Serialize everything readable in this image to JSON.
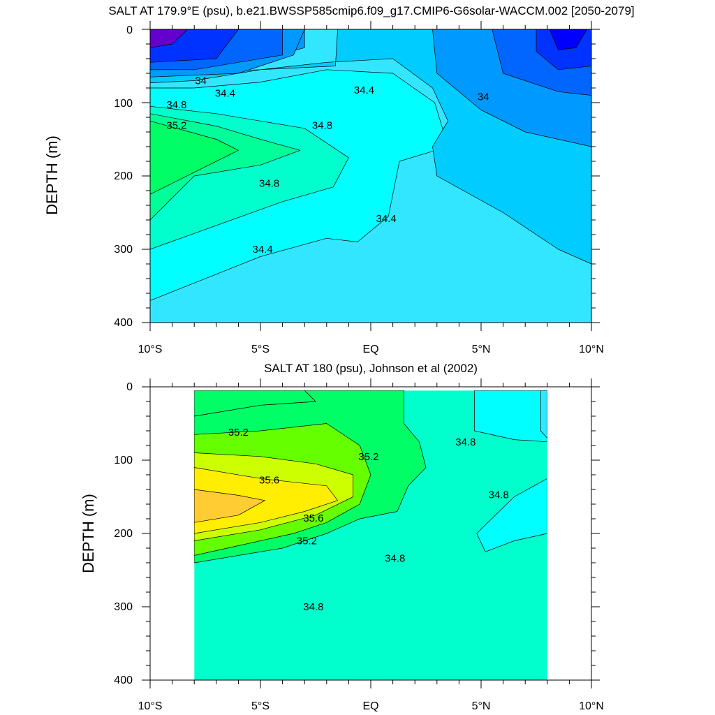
{
  "chart_data": [
    {
      "type": "contour",
      "title": "SALT AT 179.9°E (psu), b.e21.BWSSP585cmip6.f09_g17.CMIP6-G6solar-WACCM.002 [2050-2079]",
      "xlabel": "",
      "ylabel": "DEPTH (m)",
      "x_ticks": [
        "10°S",
        "5°S",
        "EQ",
        "5°N",
        "10°N"
      ],
      "x_tick_values": [
        -10,
        -5,
        0,
        5,
        10
      ],
      "y_ticks": [
        "0",
        "100",
        "200",
        "300",
        "400"
      ],
      "y_tick_values": [
        0,
        100,
        200,
        300,
        400
      ],
      "xlim": [
        -10,
        10
      ],
      "ylim": [
        400,
        0
      ],
      "data_xlim": [
        -10,
        10
      ],
      "background_color": "#33e6ff",
      "regions": [
        {
          "level": 34.4,
          "color": "#00ffff",
          "points": [
            [
              -10,
              80
            ],
            [
              -8,
              80
            ],
            [
              -5,
              72
            ],
            [
              -2,
              55
            ],
            [
              1,
              60
            ],
            [
              2.9,
              100
            ],
            [
              3.5,
              160
            ],
            [
              1.3,
              180
            ],
            [
              0.8,
              255
            ],
            [
              -0.6,
              290
            ],
            [
              -2,
              285
            ],
            [
              -5,
              310
            ],
            [
              -10,
              370
            ]
          ]
        },
        {
          "level": 34.8,
          "color": "#00ffcc",
          "points": [
            [
              -10,
              105
            ],
            [
              -7,
              115
            ],
            [
              -3,
              135
            ],
            [
              -1,
              175
            ],
            [
              -1.7,
              215
            ],
            [
              -4,
              235
            ],
            [
              -10,
              300
            ]
          ]
        },
        {
          "level": 35.2,
          "color": "#00ff99",
          "points": [
            [
              -10,
              115
            ],
            [
              -7,
              132
            ],
            [
              -5,
              150
            ],
            [
              -3.2,
              165
            ],
            [
              -5,
              185
            ],
            [
              -8,
              200
            ],
            [
              -10,
              260
            ]
          ]
        },
        {
          "level": 35.6,
          "color": "#00ff66",
          "points": [
            [
              -10,
              125
            ],
            [
              -7,
              150
            ],
            [
              -6,
              165
            ],
            [
              -7,
              180
            ],
            [
              -10,
              225
            ]
          ]
        },
        {
          "level": 34.0,
          "color": "#00ccff",
          "points": [
            [
              -10,
              60
            ],
            [
              -5,
              55
            ],
            [
              -1.6,
              50
            ],
            [
              -1.5,
              0
            ],
            [
              10,
              0
            ],
            [
              10,
              320
            ],
            [
              8.5,
              300
            ],
            [
              6,
              250
            ],
            [
              3,
              200
            ],
            [
              2.8,
              160
            ],
            [
              3.5,
              125
            ],
            [
              2.8,
              80
            ],
            [
              1,
              40
            ],
            [
              -2,
              45
            ],
            [
              -5,
              55
            ],
            [
              -8,
              70
            ],
            [
              -10,
              73
            ]
          ]
        },
        {
          "level": 33.6,
          "color": "#0099ff",
          "points": [
            [
              -10,
              45
            ],
            [
              -5,
              42
            ],
            [
              -3,
              25
            ],
            [
              -3,
              0
            ],
            [
              10,
              0
            ],
            [
              10,
              160
            ],
            [
              7,
              140
            ],
            [
              5,
              110
            ],
            [
              3,
              60
            ],
            [
              2.8,
              0
            ],
            [
              2.6,
              0
            ],
            [
              -3,
              0
            ]
          ]
        },
        {
          "level": 33.6,
          "color": "#0099ff",
          "points": [
            [
              -10,
              0
            ],
            [
              -3,
              0
            ],
            [
              -3.5,
              35
            ],
            [
              -6,
              60
            ],
            [
              -10,
              65
            ]
          ]
        },
        {
          "level": 33.2,
          "color": "#0066ff",
          "points": [
            [
              -10,
              0
            ],
            [
              -4,
              0
            ],
            [
              -4,
              35
            ],
            [
              -8,
              55
            ],
            [
              -10,
              55
            ]
          ]
        },
        {
          "level": 33.2,
          "color": "#0066ff",
          "points": [
            [
              5.5,
              0
            ],
            [
              10,
              0
            ],
            [
              10,
              90
            ],
            [
              8.5,
              85
            ],
            [
              6,
              60
            ]
          ]
        },
        {
          "level": 32.8,
          "color": "#0033ff",
          "points": [
            [
              -10,
              0
            ],
            [
              -6,
              0
            ],
            [
              -7,
              40
            ],
            [
              -10,
              45
            ]
          ]
        },
        {
          "level": 32.8,
          "color": "#0033ff",
          "points": [
            [
              7.5,
              0
            ],
            [
              10,
              0
            ],
            [
              10,
              50
            ],
            [
              8.5,
              55
            ],
            [
              7.5,
              30
            ]
          ]
        },
        {
          "level": 32.4,
          "color": "#0000ff",
          "points": [
            [
              8.1,
              0
            ],
            [
              9.8,
              0
            ],
            [
              9.3,
              25
            ],
            [
              8.5,
              28
            ]
          ]
        },
        {
          "level": 32.0,
          "color": "#6600cc",
          "points": [
            [
              -10,
              0
            ],
            [
              -8.3,
              0
            ],
            [
              -9,
              20
            ],
            [
              -10,
              25
            ]
          ]
        }
      ],
      "contour_labels": [
        {
          "text": "34",
          "x": -7.7,
          "y": 70
        },
        {
          "text": "34.4",
          "x": -6.6,
          "y": 87
        },
        {
          "text": "34.8",
          "x": -8.8,
          "y": 103
        },
        {
          "text": "35.2",
          "x": -8.8,
          "y": 131
        },
        {
          "text": "34.8",
          "x": -2.2,
          "y": 131
        },
        {
          "text": "34.4",
          "x": -0.3,
          "y": 83
        },
        {
          "text": "34",
          "x": 5.1,
          "y": 92
        },
        {
          "text": "34.8",
          "x": -4.6,
          "y": 210
        },
        {
          "text": "34.4",
          "x": 0.7,
          "y": 258
        },
        {
          "text": "34.4",
          "x": -4.9,
          "y": 300
        }
      ]
    },
    {
      "type": "contour",
      "title": "SALT AT 180 (psu), Johnson et al (2002)",
      "xlabel": "",
      "ylabel": "DEPTH (m)",
      "x_ticks": [
        "10°S",
        "5°S",
        "EQ",
        "5°N",
        "10°N"
      ],
      "x_tick_values": [
        -10,
        -5,
        0,
        5,
        10
      ],
      "y_ticks": [
        "0",
        "100",
        "200",
        "300",
        "400"
      ],
      "y_tick_values": [
        0,
        100,
        200,
        300,
        400
      ],
      "xlim": [
        -10,
        10
      ],
      "ylim": [
        400,
        0
      ],
      "data_xlim": [
        -8,
        8
      ],
      "background_color": "#00ffcc",
      "regions": [
        {
          "level": 35.2,
          "color": "#00ff66",
          "points": [
            [
              -8,
              40
            ],
            [
              -5,
              25
            ],
            [
              -2.5,
              20
            ],
            [
              -3,
              5
            ],
            [
              1.5,
              5
            ],
            [
              1.5,
              50
            ],
            [
              2.2,
              75
            ],
            [
              2.5,
              110
            ],
            [
              1.7,
              135
            ],
            [
              1.2,
              170
            ],
            [
              -0.5,
              180
            ],
            [
              -2,
              200
            ],
            [
              -4,
              220
            ],
            [
              -8,
              240
            ]
          ]
        },
        {
          "level": 35.6,
          "color": "#66ff00",
          "points": [
            [
              -8,
              65
            ],
            [
              -5,
              60
            ],
            [
              -2,
              50
            ],
            [
              -0.5,
              80
            ],
            [
              0,
              120
            ],
            [
              -0.5,
              160
            ],
            [
              -2,
              185
            ],
            [
              -3.5,
              200
            ],
            [
              -8,
              230
            ]
          ]
        },
        {
          "level": 35.6,
          "color": "#00ff66",
          "points": [
            [
              -8,
              5
            ],
            [
              -3,
              5
            ],
            [
              -2.5,
              20
            ],
            [
              -5,
              25
            ],
            [
              -8,
              40
            ]
          ]
        },
        {
          "level": 36.0,
          "color": "#ccff00",
          "points": [
            [
              -8,
              90
            ],
            [
              -5,
              95
            ],
            [
              -2.5,
              105
            ],
            [
              -0.8,
              120
            ],
            [
              -0.8,
              150
            ],
            [
              -2.5,
              175
            ],
            [
              -5,
              195
            ],
            [
              -8,
              210
            ]
          ]
        },
        {
          "level": 36.4,
          "color": "#ffee00",
          "points": [
            [
              -8,
              110
            ],
            [
              -5,
              125
            ],
            [
              -2,
              135
            ],
            [
              -1.5,
              155
            ],
            [
              -3,
              170
            ],
            [
              -5,
              185
            ],
            [
              -8,
              200
            ]
          ]
        },
        {
          "level": 36.8,
          "color": "#ffcc33",
          "points": [
            [
              -8,
              140
            ],
            [
              -6,
              148
            ],
            [
              -4.8,
              155
            ],
            [
              -6,
              175
            ],
            [
              -8,
              185
            ]
          ]
        },
        {
          "level": 34.8,
          "color": "#00ffff",
          "points": [
            [
              4.7,
              5
            ],
            [
              8,
              5
            ],
            [
              8,
              75
            ],
            [
              6.5,
              72
            ],
            [
              4.7,
              60
            ]
          ]
        },
        {
          "level": 34.8,
          "color": "#00ffff",
          "points": [
            [
              8,
              125
            ],
            [
              6.5,
              150
            ],
            [
              4.8,
              200
            ],
            [
              5.2,
              225
            ],
            [
              6.5,
              210
            ],
            [
              8,
              200
            ]
          ]
        },
        {
          "level": 34.4,
          "color": "#33e6ff",
          "points": [
            [
              7.7,
              5
            ],
            [
              8,
              5
            ],
            [
              8,
              70
            ],
            [
              7.7,
              60
            ]
          ]
        }
      ],
      "contour_labels": [
        {
          "text": "35.2",
          "x": -6.0,
          "y": 62
        },
        {
          "text": "35.2",
          "x": -0.1,
          "y": 95
        },
        {
          "text": "34.8",
          "x": 4.3,
          "y": 75
        },
        {
          "text": "35.6",
          "x": -4.6,
          "y": 127
        },
        {
          "text": "34.8",
          "x": 5.8,
          "y": 147
        },
        {
          "text": "35.6",
          "x": -2.6,
          "y": 179
        },
        {
          "text": "35.2",
          "x": -2.9,
          "y": 210
        },
        {
          "text": "34.8",
          "x": 1.1,
          "y": 234
        },
        {
          "text": "34.8",
          "x": -2.6,
          "y": 300
        }
      ]
    }
  ]
}
